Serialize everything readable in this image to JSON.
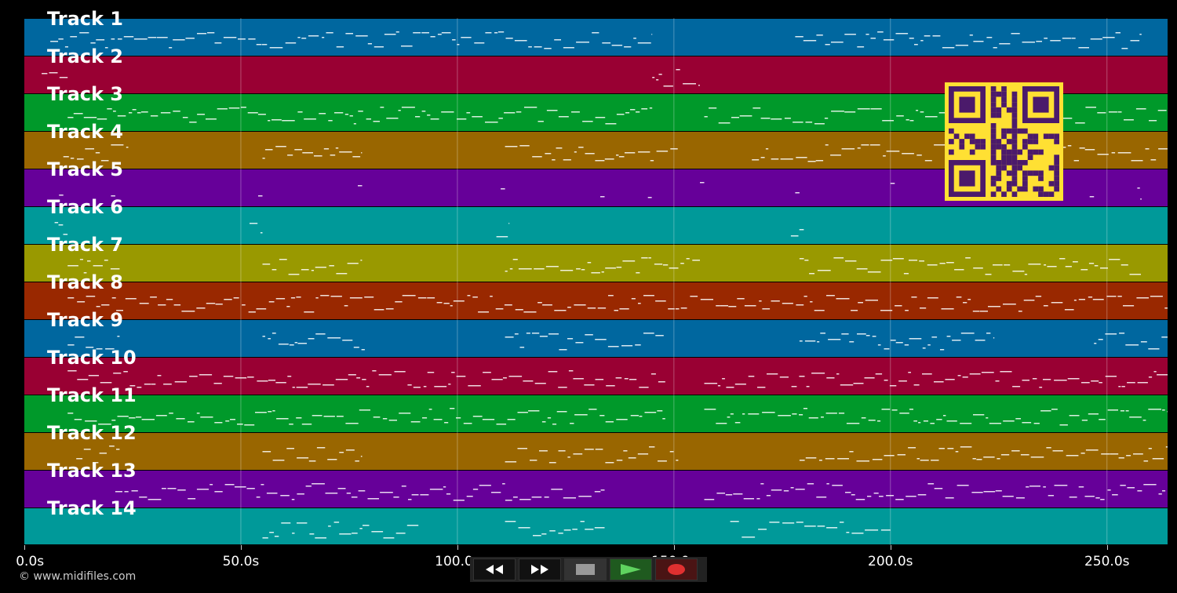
{
  "tracks": [
    {
      "label": "Track 1",
      "color": "#00679f"
    },
    {
      "label": "Track 2",
      "color": "#990033"
    },
    {
      "label": "Track 3",
      "color": "#00992a"
    },
    {
      "label": "Track 4",
      "color": "#996600"
    },
    {
      "label": "Track 5",
      "color": "#660099"
    },
    {
      "label": "Track 6",
      "color": "#009999"
    },
    {
      "label": "Track 7",
      "color": "#999900"
    },
    {
      "label": "Track 8",
      "color": "#992800"
    },
    {
      "label": "Track 9",
      "color": "#00679f"
    },
    {
      "label": "Track 10",
      "color": "#990033"
    },
    {
      "label": "Track 11",
      "color": "#00992a"
    },
    {
      "label": "Track 12",
      "color": "#996600"
    },
    {
      "label": "Track 13",
      "color": "#660099"
    },
    {
      "label": "Track 14",
      "color": "#009999"
    }
  ],
  "time_axis": {
    "max_seconds": 264,
    "ticks": [
      {
        "value": 0,
        "label": "0.0s"
      },
      {
        "value": 50,
        "label": "50.0s"
      },
      {
        "value": 100,
        "label": "100.0s"
      },
      {
        "value": 150,
        "label": "150.0s"
      },
      {
        "value": 200,
        "label": "200.0s"
      },
      {
        "value": 250,
        "label": "250.0s"
      }
    ]
  },
  "copyright": "© www.midifiles.com",
  "transport": {
    "rewind_icon": "rewind-icon",
    "fastforward_icon": "fast-forward-icon",
    "stop_icon": "stop-icon",
    "play_icon": "play-icon",
    "record_icon": "record-icon"
  },
  "colors": {
    "qr_bg": "#ffe033",
    "qr_fg": "#4b1a6b",
    "play": "#5fd35f",
    "record": "#e03030"
  }
}
